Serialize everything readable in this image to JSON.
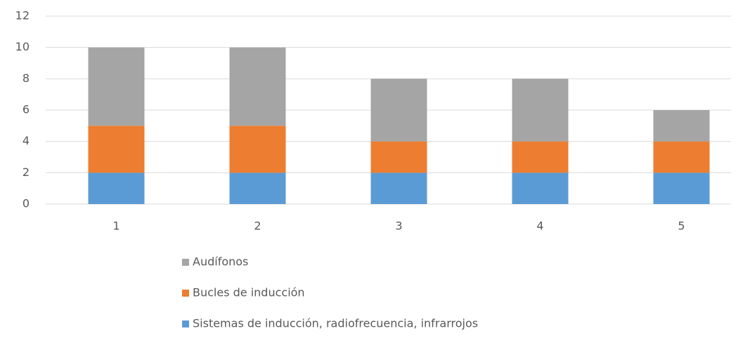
{
  "chart_data": {
    "type": "stacked_bar",
    "categories": [
      "1",
      "2",
      "3",
      "4",
      "5"
    ],
    "series": [
      {
        "name": "Sistemas de inducción, radiofrecuencia, infrarrojos",
        "color": "#5b9bd5",
        "values": [
          2,
          2,
          2,
          2,
          2
        ]
      },
      {
        "name": "Bucles de inducción",
        "color": "#ed7d31",
        "values": [
          3,
          3,
          2,
          2,
          2
        ]
      },
      {
        "name": "Audífonos",
        "color": "#a5a5a5",
        "values": [
          5,
          5,
          4,
          4,
          2
        ]
      }
    ],
    "ylim": [
      0,
      12
    ],
    "yticks": [
      0,
      2,
      4,
      6,
      8,
      10,
      12
    ],
    "grid": true,
    "legend": "bottom"
  }
}
